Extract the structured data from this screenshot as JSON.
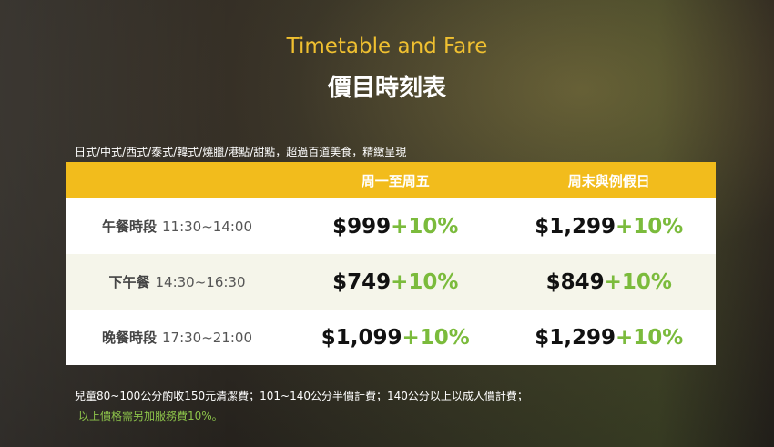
{
  "header": {
    "title_en": "Timetable and Fare",
    "title_zh": "價目時刻表"
  },
  "subtitle": "日式/中式/西式/泰式/韓式/燒臘/港點/甜點，超過百道美食，精緻呈現",
  "table": {
    "columns": [
      "",
      "周一至周五",
      "周末與例假日"
    ],
    "rows": [
      {
        "meal": "午餐時段",
        "time": "11:30~14:00",
        "weekday": "$999",
        "weekend": "$1,299",
        "surcharge": "+10%"
      },
      {
        "meal": "下午餐",
        "time": "14:30~16:30",
        "weekday": "$749",
        "weekend": "$849",
        "surcharge": "+10%"
      },
      {
        "meal": "晚餐時段",
        "time": "17:30~21:00",
        "weekday": "$1,099",
        "weekend": "$1,299",
        "surcharge": "+10%"
      }
    ]
  },
  "notes": {
    "children": "兒童80~100公分酌收150元清潔費；101~140公分半價計費；140公分以上以成人價計費；",
    "service": "以上價格需另加服務費10%。"
  },
  "colors": {
    "accent": "#f2bc1c",
    "green": "#7bbb3c"
  }
}
